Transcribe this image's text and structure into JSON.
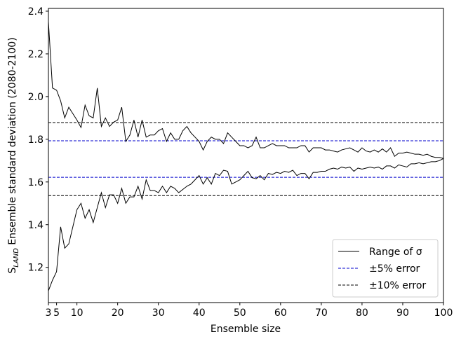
{
  "chart_data": {
    "type": "range-line",
    "xlabel": "Ensemble size",
    "ylabel": {
      "main": "S",
      "sub": "LAND",
      "rest": "Ensemble standard deviation (2080-2100)"
    },
    "x": [
      3,
      4,
      5,
      6,
      7,
      8,
      9,
      10,
      11,
      12,
      13,
      14,
      15,
      16,
      17,
      18,
      19,
      20,
      21,
      22,
      23,
      24,
      25,
      26,
      27,
      28,
      29,
      30,
      31,
      32,
      33,
      34,
      35,
      36,
      37,
      38,
      39,
      40,
      41,
      42,
      43,
      44,
      45,
      46,
      47,
      48,
      49,
      50,
      51,
      52,
      53,
      54,
      55,
      56,
      57,
      58,
      59,
      60,
      61,
      62,
      63,
      64,
      65,
      66,
      67,
      68,
      69,
      70,
      71,
      72,
      73,
      74,
      75,
      76,
      77,
      78,
      79,
      80,
      81,
      82,
      83,
      84,
      85,
      86,
      87,
      88,
      89,
      90,
      91,
      92,
      93,
      94,
      95,
      96,
      97,
      98,
      99,
      100
    ],
    "series": [
      {
        "name": "Range of σ",
        "color": "#000000",
        "upper": [
          2.35,
          2.04,
          2.03,
          1.98,
          1.9,
          1.95,
          1.92,
          1.89,
          1.855,
          1.96,
          1.91,
          1.9,
          2.04,
          1.86,
          1.9,
          1.86,
          1.88,
          1.89,
          1.95,
          1.79,
          1.82,
          1.89,
          1.81,
          1.89,
          1.81,
          1.82,
          1.82,
          1.84,
          1.85,
          1.79,
          1.83,
          1.8,
          1.8,
          1.84,
          1.86,
          1.83,
          1.81,
          1.79,
          1.75,
          1.79,
          1.81,
          1.8,
          1.8,
          1.78,
          1.83,
          1.81,
          1.79,
          1.77,
          1.77,
          1.76,
          1.77,
          1.81,
          1.76,
          1.76,
          1.77,
          1.78,
          1.77,
          1.77,
          1.77,
          1.76,
          1.76,
          1.76,
          1.77,
          1.77,
          1.74,
          1.76,
          1.76,
          1.76,
          1.75,
          1.75,
          1.745,
          1.74,
          1.75,
          1.755,
          1.76,
          1.75,
          1.74,
          1.76,
          1.745,
          1.74,
          1.75,
          1.74,
          1.755,
          1.74,
          1.76,
          1.72,
          1.735,
          1.735,
          1.74,
          1.735,
          1.73,
          1.73,
          1.725,
          1.73,
          1.72,
          1.715,
          1.715,
          1.71
        ],
        "lower": [
          1.09,
          1.14,
          1.18,
          1.39,
          1.29,
          1.31,
          1.39,
          1.47,
          1.5,
          1.43,
          1.47,
          1.41,
          1.48,
          1.55,
          1.48,
          1.54,
          1.54,
          1.5,
          1.57,
          1.5,
          1.53,
          1.53,
          1.58,
          1.52,
          1.61,
          1.56,
          1.56,
          1.55,
          1.58,
          1.55,
          1.58,
          1.57,
          1.55,
          1.565,
          1.58,
          1.59,
          1.61,
          1.63,
          1.59,
          1.62,
          1.59,
          1.64,
          1.63,
          1.655,
          1.65,
          1.59,
          1.6,
          1.61,
          1.63,
          1.65,
          1.62,
          1.615,
          1.63,
          1.61,
          1.64,
          1.635,
          1.645,
          1.64,
          1.65,
          1.645,
          1.655,
          1.63,
          1.64,
          1.64,
          1.615,
          1.645,
          1.645,
          1.65,
          1.65,
          1.66,
          1.665,
          1.66,
          1.67,
          1.665,
          1.67,
          1.65,
          1.665,
          1.66,
          1.665,
          1.67,
          1.665,
          1.67,
          1.66,
          1.675,
          1.675,
          1.665,
          1.68,
          1.675,
          1.67,
          1.685,
          1.685,
          1.69,
          1.685,
          1.69,
          1.695,
          1.695,
          1.7,
          1.71
        ]
      }
    ],
    "ref_lines": [
      {
        "name": "±5% error",
        "color": "#0000cc",
        "values": [
          1.622,
          1.793
        ]
      },
      {
        "name": "±10% error",
        "color": "#000000",
        "values": [
          1.536,
          1.878
        ]
      }
    ],
    "xlim": [
      3,
      100
    ],
    "ylim": [
      1.035,
      2.413
    ],
    "xticks": [
      3,
      5,
      10,
      20,
      30,
      40,
      50,
      60,
      70,
      80,
      90,
      100
    ],
    "yticks": [
      1.2,
      1.4,
      1.6,
      1.8,
      {
        "value": 2,
        "label": "2.0"
      },
      2.2,
      2.4
    ],
    "legend": "lower right"
  }
}
